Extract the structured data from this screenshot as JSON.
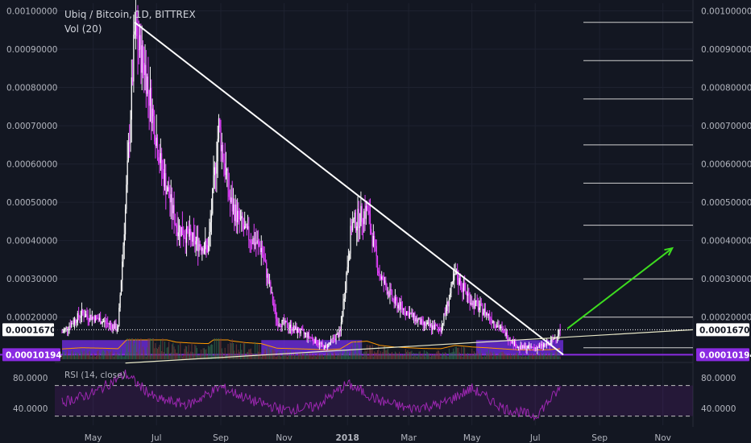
{
  "header": {
    "title": "Ubiq / Bitcoin, 1D, BITTREX",
    "volume_label": "Vol (20)",
    "rsi_label": "RSI (14, close)"
  },
  "price_axis": {
    "ticks": [
      "0.00100000",
      "0.00090000",
      "0.00080000",
      "0.00070000",
      "0.00060000",
      "0.00050000",
      "0.00040000",
      "0.00030000",
      "0.00020000"
    ],
    "current_price": "0.00016708",
    "support_price": "0.00010194"
  },
  "rsi_axis": {
    "ticks": [
      "80.0000",
      "40.0000"
    ]
  },
  "time_axis": {
    "ticks": [
      "May",
      "Jul",
      "Sep",
      "Nov",
      "2018",
      "Mar",
      "May",
      "Jul",
      "Sep",
      "Nov"
    ]
  },
  "colors": {
    "background": "#131722",
    "candle": "#e040fb",
    "support_zone": "#7b2ff7",
    "target_arrow": "#3ddc1f",
    "trendline": "#ffffff",
    "current_price_tag": "#ffffff",
    "support_tag": "#8a2be2"
  },
  "chart_data": {
    "type": "line",
    "title": "Ubiq / Bitcoin, 1D, BITTREX",
    "series": [
      {
        "name": "Ubiq / Bitcoin",
        "x": [
          "2017-04-01",
          "2017-04-20",
          "2017-05-10",
          "2017-05-25",
          "2017-06-01",
          "2017-06-10",
          "2017-06-20",
          "2017-07-05",
          "2017-07-20",
          "2017-08-05",
          "2017-08-20",
          "2017-08-30",
          "2017-09-10",
          "2017-09-25",
          "2017-10-10",
          "2017-10-25",
          "2017-11-10",
          "2017-11-25",
          "2017-12-10",
          "2017-12-25",
          "2018-01-05",
          "2018-01-20",
          "2018-02-01",
          "2018-02-15",
          "2018-03-01",
          "2018-03-15",
          "2018-04-01",
          "2018-04-15",
          "2018-05-01",
          "2018-05-15",
          "2018-06-01",
          "2018-06-15",
          "2018-07-01",
          "2018-07-15",
          "2018-07-25"
        ],
        "values": [
          0.00016,
          0.00021,
          0.00019,
          0.00017,
          0.00048,
          0.00094,
          0.00085,
          0.0006,
          0.00044,
          0.0004,
          0.00038,
          0.0007,
          0.0005,
          0.00042,
          0.00038,
          0.00019,
          0.00017,
          0.00015,
          0.00012,
          0.00016,
          0.00044,
          0.00048,
          0.00031,
          0.00024,
          0.00021,
          0.00018,
          0.00017,
          0.00031,
          0.00024,
          0.00021,
          0.00016,
          0.00012,
          0.00012,
          0.00013,
          0.00016708
        ]
      }
    ],
    "rsi": {
      "name": "RSI (14, close)",
      "x": [
        "2017-04-01",
        "2017-05-01",
        "2017-06-01",
        "2017-07-01",
        "2017-08-01",
        "2017-09-01",
        "2017-10-01",
        "2017-11-01",
        "2017-12-01",
        "2018-01-01",
        "2018-02-01",
        "2018-03-01",
        "2018-04-01",
        "2018-05-01",
        "2018-06-01",
        "2018-07-01",
        "2018-07-25"
      ],
      "values": [
        48,
        60,
        85,
        52,
        45,
        68,
        50,
        38,
        42,
        72,
        50,
        40,
        45,
        66,
        40,
        30,
        66
      ]
    },
    "volume": {
      "name": "Vol (20)"
    },
    "ylim": [
      9e-05,
      0.00102
    ],
    "xlim": [
      "2017-03-25",
      "2018-11-30"
    ],
    "rsi_ylim": [
      18,
      98
    ],
    "annotations": {
      "descending_trendline": [
        [
          "2017-06-10",
          0.00097
        ],
        [
          "2018-07-28",
          0.00010194
        ]
      ],
      "ascending_trendline": [
        [
          "2017-06-01",
          8e-05
        ],
        [
          "2018-11-30",
          0.00016708
        ]
      ],
      "support_zones": [
        {
          "from": "2017-04-01",
          "to": "2017-06-25",
          "low": 0.00010194,
          "high": 0.00014
        },
        {
          "from": "2017-10-10",
          "to": "2018-01-15",
          "low": 0.00010194,
          "high": 0.00014
        },
        {
          "from": "2018-05-05",
          "to": "2018-07-28",
          "low": 0.00010194,
          "high": 0.00014
        }
      ],
      "target_arrow": [
        [
          "2018-08-01",
          0.00017
        ],
        [
          "2018-11-10",
          0.00038
        ]
      ],
      "fib_levels": [
        0.00097,
        0.00087,
        0.00077,
        0.00065,
        0.00055,
        0.00044,
        0.0003,
        0.0002,
        0.00012
      ]
    },
    "grid": true
  }
}
